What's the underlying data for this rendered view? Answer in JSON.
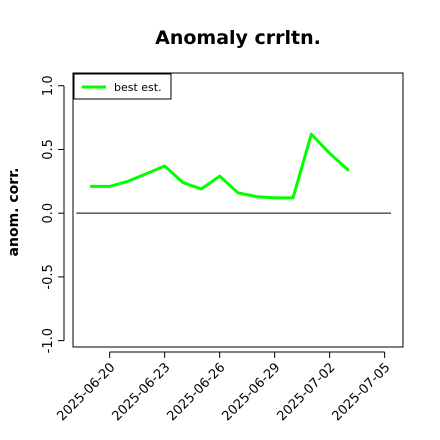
{
  "chart_data": {
    "type": "line",
    "title": "Anomaly crrltn.",
    "xlabel": "",
    "ylabel": "anom. corr.",
    "x_tick_labels": [
      "2025-06-20",
      "2025-06-23",
      "2025-06-26",
      "2025-06-29",
      "2025-07-02",
      "2025-07-05"
    ],
    "y_tick_labels": [
      "-1.0",
      "-0.5",
      "0.0",
      "0.5",
      "1.0"
    ],
    "y_ticks": [
      -1.0,
      -0.5,
      0.0,
      0.5,
      1.0
    ],
    "xlim": [
      "2025-06-18",
      "2025-07-06"
    ],
    "ylim": [
      -1.05,
      1.1
    ],
    "reference_line": 0.0,
    "grid": false,
    "legend_position": "top-left",
    "series": [
      {
        "name": "best est.",
        "color": "#00ff00",
        "x": [
          "2025-06-19",
          "2025-06-20",
          "2025-06-21",
          "2025-06-22",
          "2025-06-23",
          "2025-06-24",
          "2025-06-25",
          "2025-06-26",
          "2025-06-27",
          "2025-06-28",
          "2025-06-29",
          "2025-06-30",
          "2025-07-01",
          "2025-07-02",
          "2025-07-03"
        ],
        "y": [
          0.21,
          0.21,
          0.25,
          0.31,
          0.37,
          0.24,
          0.19,
          0.29,
          0.16,
          0.13,
          0.12,
          0.12,
          0.62,
          0.47,
          0.34
        ]
      }
    ]
  }
}
